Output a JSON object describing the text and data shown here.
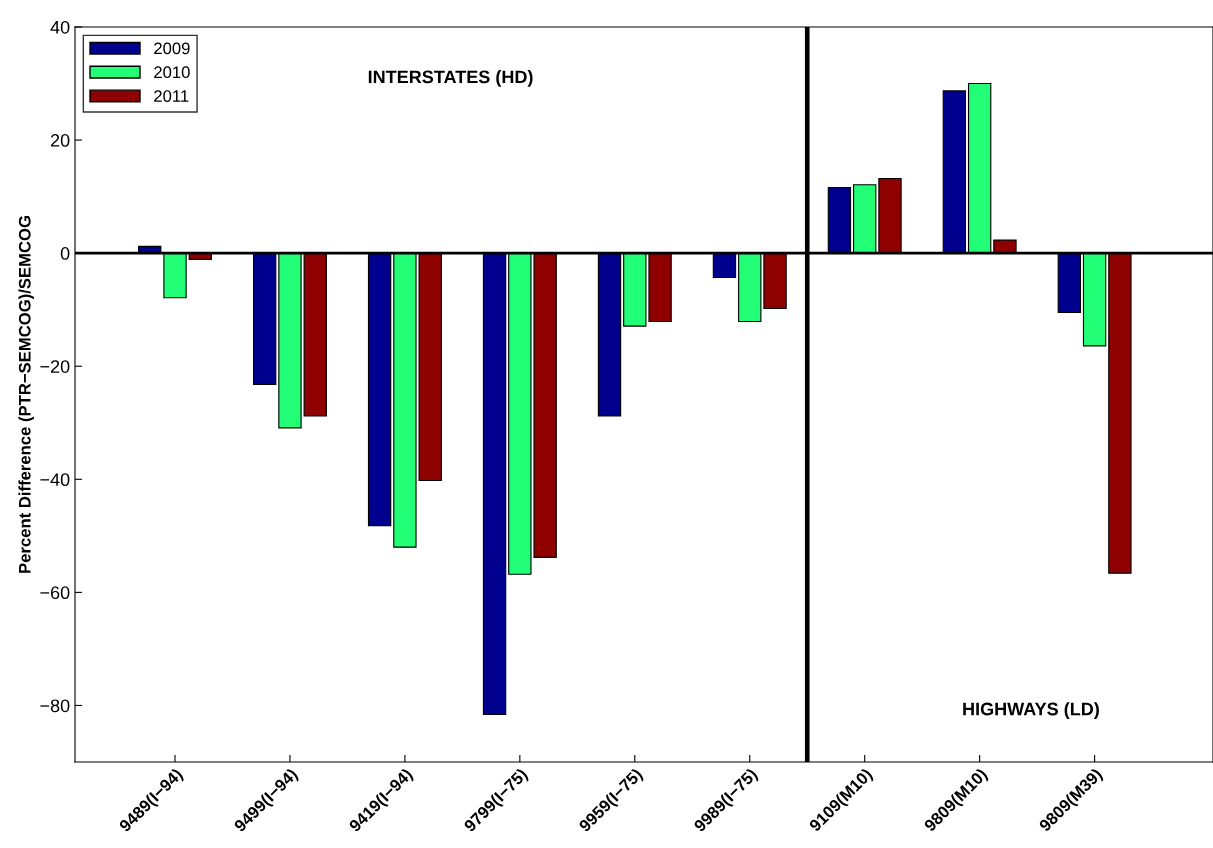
{
  "chart_data": {
    "type": "bar",
    "ylabel": "Percent Difference (PTR−SEMCOG)/SEMCOG",
    "categories": [
      "9489(I−94)",
      "9499(I−94)",
      "9419(I−94)",
      "9799(I−75)",
      "9959(I−75)",
      "9989(I−75)",
      "9109(M10)",
      "9809(M10)",
      "9809(M39)"
    ],
    "series": [
      {
        "name": "2009",
        "color": "#00008f",
        "values": [
          1.2,
          -23.2,
          -48.2,
          -81.6,
          -28.8,
          -4.3,
          11.6,
          28.7,
          -10.5
        ]
      },
      {
        "name": "2010",
        "color": "#22ff77",
        "values": [
          -7.9,
          -30.9,
          -52,
          -56.8,
          -12.9,
          -12.1,
          12.1,
          30,
          -16.4
        ]
      },
      {
        "name": "2011",
        "color": "#8f0000",
        "values": [
          -1.1,
          -28.8,
          -40.2,
          -53.8,
          -12.1,
          -9.8,
          13.2,
          2.3,
          -56.6
        ]
      }
    ],
    "ylim": [
      -90,
      40
    ],
    "yticks": [
      {
        "value": -80,
        "label": "−80"
      },
      {
        "value": -60,
        "label": "−60"
      },
      {
        "value": -40,
        "label": "−40"
      },
      {
        "value": -20,
        "label": "−20"
      },
      0,
      20,
      40
    ],
    "ref_lines": [
      {
        "axis": "y",
        "value": 0,
        "color": "#000000"
      }
    ],
    "annotations": [
      "INTERSTATES (HD)",
      "HIGHWAYS (LD)"
    ],
    "legend": "top left",
    "grid": false
  }
}
